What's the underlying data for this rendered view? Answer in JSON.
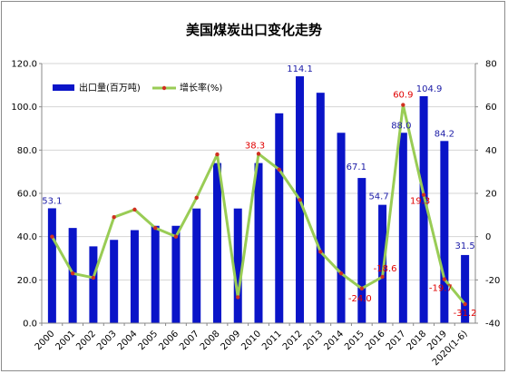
{
  "chart_data": {
    "type": "bar",
    "title": "美国煤炭出口变化走势",
    "categories": [
      "2000",
      "2001",
      "2002",
      "2003",
      "2004",
      "2005",
      "2006",
      "2007",
      "2008",
      "2009",
      "2010",
      "2011",
      "2012",
      "2013",
      "2014",
      "2015",
      "2016",
      "2017",
      "2018",
      "2019",
      "2020(1-6)"
    ],
    "series": [
      {
        "name": "出口量(百万吨)",
        "type": "bar",
        "axis": "left",
        "color": "#0a14c8",
        "values": [
          53.1,
          44.0,
          35.5,
          38.5,
          43.0,
          45.0,
          45.0,
          53.0,
          74.0,
          53.0,
          74.0,
          97.0,
          114.1,
          106.5,
          88.0,
          67.1,
          54.7,
          88.0,
          104.9,
          84.2,
          31.5
        ],
        "labeled": [
          0,
          12,
          15,
          16,
          17,
          18,
          19,
          20
        ]
      },
      {
        "name": "增长率(%)",
        "type": "line",
        "axis": "right",
        "color": "#99cc55",
        "marker_color": "#d03020",
        "values": [
          0.0,
          -17.0,
          -19.0,
          9.0,
          12.5,
          4.0,
          0.0,
          18.0,
          38.0,
          -28.0,
          38.3,
          31.0,
          17.0,
          -7.0,
          -17.0,
          -24.0,
          -18.6,
          60.9,
          19.3,
          -19.7,
          -31.2
        ],
        "labeled": [
          10,
          15,
          16,
          17,
          18,
          19,
          20
        ]
      }
    ],
    "y_left": {
      "ticks": [
        "0.0",
        "20.0",
        "40.0",
        "60.0",
        "80.0",
        "100.0",
        "120.0"
      ],
      "range": [
        0,
        120
      ]
    },
    "y_right": {
      "ticks": [
        "-40",
        "-20",
        "0",
        "20",
        "40",
        "60",
        "80"
      ],
      "range": [
        -40,
        80
      ]
    },
    "grid": true,
    "legend": "top-left"
  }
}
